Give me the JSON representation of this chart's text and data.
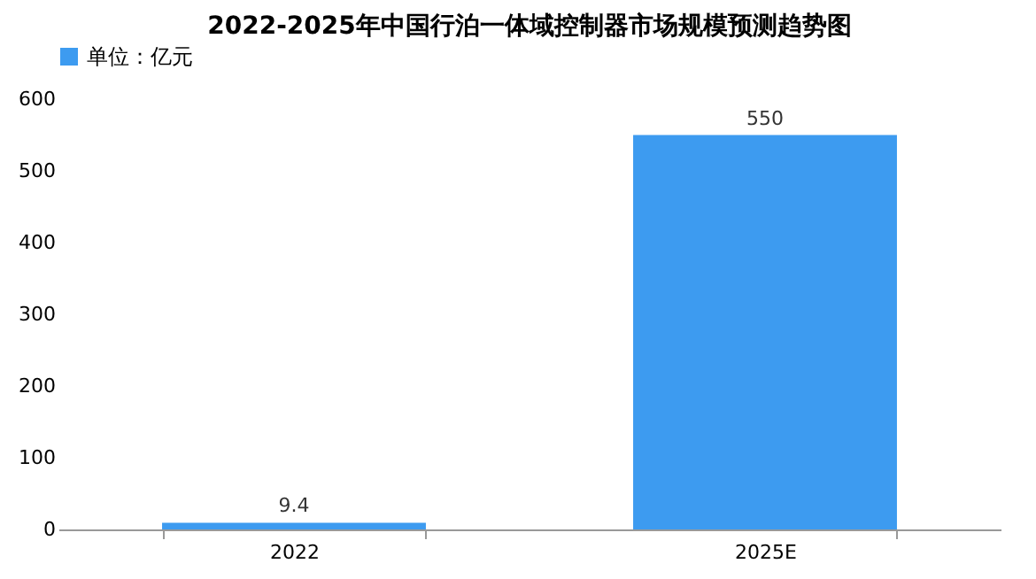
{
  "chart_data": {
    "type": "bar",
    "title": "2022-2025年中国行泊一体域控制器市场规模预测趋势图",
    "categories": [
      "2022",
      "2025E"
    ],
    "series": [
      {
        "name": "单位：亿元",
        "color": "#3d9bf0",
        "values": [
          9.4,
          550
        ]
      }
    ],
    "ylim": [
      0,
      600
    ],
    "yticks": [
      0,
      100,
      200,
      300,
      400,
      500,
      600
    ],
    "data_labels": true,
    "grid": false,
    "legend": "top"
  }
}
